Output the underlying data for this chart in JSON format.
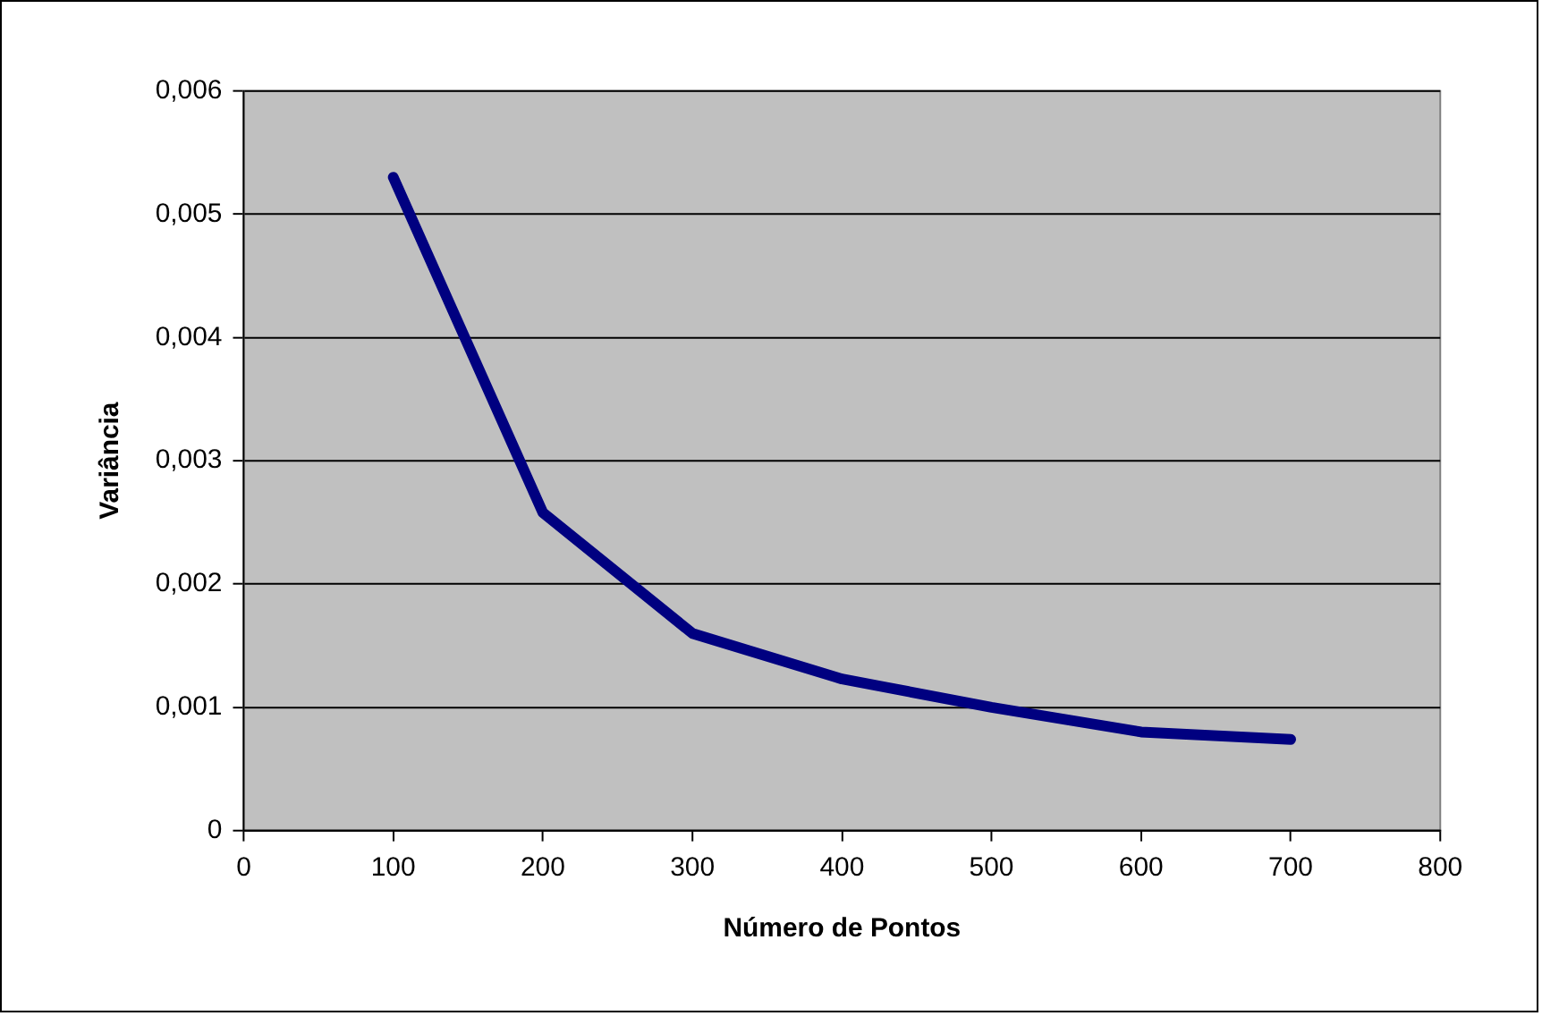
{
  "chart_data": {
    "type": "line",
    "xlabel": "Número de Pontos",
    "ylabel": "Variância",
    "x": [
      100,
      200,
      300,
      400,
      500,
      600,
      700
    ],
    "series": [
      {
        "color": "#000080",
        "values": [
          0.0053,
          0.00258,
          0.0016,
          0.00123,
          0.001,
          0.0008,
          0.00074
        ]
      }
    ],
    "xlim": [
      0,
      800
    ],
    "xticks": [
      0,
      100,
      200,
      300,
      400,
      500,
      600,
      700,
      800
    ],
    "ylim": [
      0,
      0.006
    ],
    "yticks": [
      0,
      {
        "value": 0.001,
        "label": "0,001"
      },
      {
        "value": 0.002,
        "label": "0,002"
      },
      {
        "value": 0.003,
        "label": "0,003"
      },
      {
        "value": 0.004,
        "label": "0,004"
      },
      {
        "value": 0.005,
        "label": "0,005"
      },
      {
        "value": 0.006,
        "label": "0,006"
      }
    ],
    "grid": "y",
    "legend": false,
    "marker": "none",
    "line_style": "solid"
  }
}
